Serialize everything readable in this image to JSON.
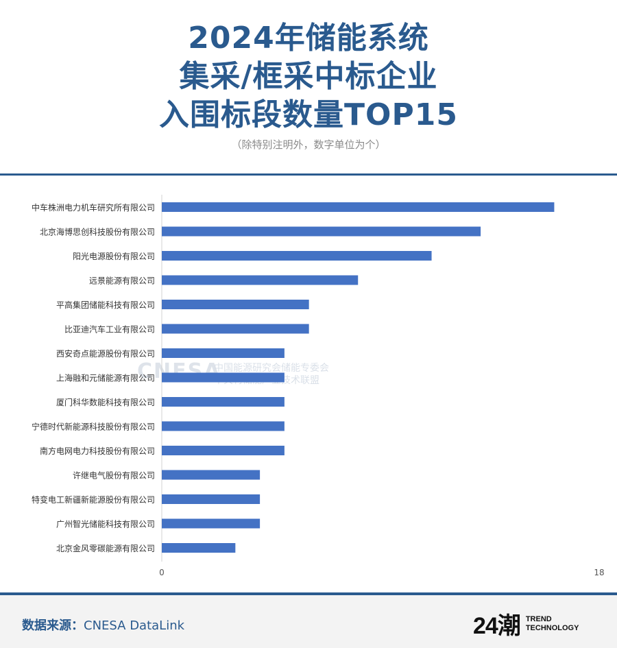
{
  "header": {
    "title_lines": [
      "2024年储能系统",
      "集采/框采中标企业",
      "入围标段数量TOP15"
    ],
    "subtitle": "（除特别注明外，数字单位为个）"
  },
  "watermark": {
    "brand": "CNESA",
    "line1": "中国能源研究会储能专委会",
    "line2": "中关村储能产业技术联盟"
  },
  "footer": {
    "source_label": "数据来源：",
    "source_value": "CNESA DataLink",
    "logo_mark": "24潮",
    "logo_line1": "TREND",
    "logo_line2": "TECHNOLOGY"
  },
  "colors": {
    "bar": "#4472c4",
    "accent": "#2a5a8e"
  },
  "chart_data": {
    "type": "bar",
    "orientation": "horizontal",
    "categories": [
      "中车株洲电力机车研究所有限公司",
      "北京海博思创科技股份有限公司",
      "阳光电源股份有限公司",
      "远景能源有限公司",
      "平高集团储能科技有限公司",
      "比亚迪汽车工业有限公司",
      "西安奇点能源股份有限公司",
      "上海融和元储能源有限公司",
      "厦门科华数能科技有限公司",
      "宁德时代新能源科技股份有限公司",
      "南方电网电力科技股份有限公司",
      "许继电气股份有限公司",
      "特变电工新疆新能源股份有限公司",
      "广州智光储能科技有限公司",
      "北京金风零碳能源有限公司"
    ],
    "values": [
      16,
      13,
      11,
      8,
      6,
      6,
      5,
      5,
      5,
      5,
      5,
      4,
      4,
      4,
      3
    ],
    "xlim": [
      0,
      18
    ],
    "x_ticks": [
      "0",
      "18"
    ],
    "grid": false,
    "legend": "none"
  }
}
